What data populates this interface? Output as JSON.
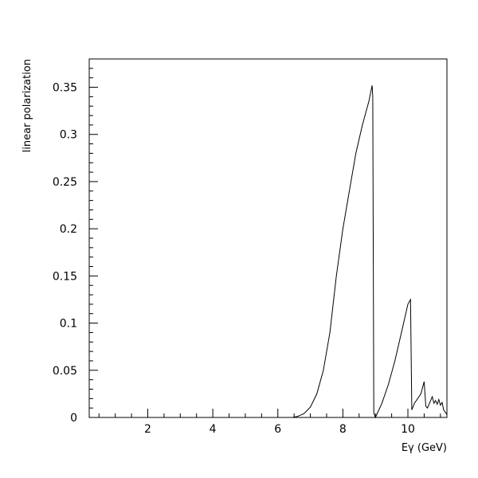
{
  "chart_data": {
    "type": "line",
    "title": "",
    "xlabel": "Eγ (GeV)",
    "ylabel": "linear polarization",
    "xlim": [
      0.2,
      11.2
    ],
    "ylim": [
      0,
      0.38
    ],
    "xticks": [
      "2",
      "4",
      "6",
      "8",
      "10"
    ],
    "xtick_values": [
      2,
      4,
      6,
      8,
      10
    ],
    "yticks": [
      "0",
      "0.05",
      "0.1",
      "0.15",
      "0.2",
      "0.25",
      "0.3",
      "0.35"
    ],
    "ytick_values": [
      0,
      0.05,
      0.1,
      0.15,
      0.2,
      0.25,
      0.3,
      0.35
    ],
    "grid": false,
    "legend": "none",
    "line_color": "#000000",
    "series": [
      {
        "x": [
          5.95,
          6.45,
          6.6,
          6.8,
          7.0,
          7.2,
          7.4,
          7.6,
          7.8,
          8.0,
          8.2,
          8.4,
          8.6,
          8.8,
          8.9,
          8.92,
          8.95,
          9.0,
          9.2,
          9.4,
          9.6,
          9.8,
          10.0,
          10.08,
          10.12,
          10.2,
          10.4,
          10.5,
          10.55,
          10.6,
          10.7,
          10.75,
          10.8,
          10.85,
          10.9,
          10.95,
          11.0,
          11.05,
          11.1,
          11.2
        ],
        "y": [
          0,
          0,
          0.001,
          0.004,
          0.011,
          0.025,
          0.05,
          0.09,
          0.15,
          0.2,
          0.24,
          0.28,
          0.31,
          0.335,
          0.352,
          0.34,
          0.005,
          0.0,
          0.015,
          0.035,
          0.06,
          0.09,
          0.12,
          0.125,
          0.008,
          0.015,
          0.025,
          0.038,
          0.012,
          0.01,
          0.018,
          0.022,
          0.015,
          0.018,
          0.014,
          0.019,
          0.013,
          0.016,
          0.008,
          0.003
        ]
      }
    ]
  }
}
